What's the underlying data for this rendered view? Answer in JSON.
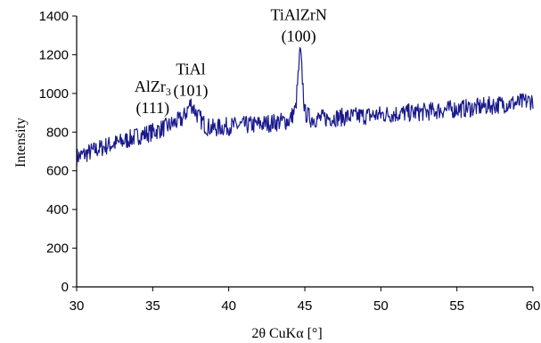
{
  "chart_data": {
    "type": "line",
    "xlabel": "2θ CuKα [°]",
    "ylabel": "Intensity",
    "xlim": [
      30,
      60
    ],
    "ylim": [
      0,
      1400
    ],
    "x_ticks": [
      "30",
      "35",
      "40",
      "45",
      "50",
      "55",
      "60"
    ],
    "y_ticks": [
      "0",
      "200",
      "400",
      "600",
      "800",
      "1000",
      "1200",
      "1400"
    ],
    "grid": false,
    "line_color": "#1a1a8c",
    "series": [
      {
        "x": [
          30,
          31,
          32,
          33,
          34,
          35,
          36,
          37,
          37.5,
          38,
          38.5,
          39,
          40,
          41,
          42,
          43,
          44,
          44.4,
          44.7,
          45,
          45.4,
          46,
          47,
          48,
          49,
          50,
          51,
          52,
          53,
          54,
          55,
          56,
          57,
          58,
          59,
          60
        ],
        "y": [
          670,
          700,
          730,
          750,
          780,
          800,
          830,
          870,
          950,
          880,
          830,
          820,
          830,
          835,
          840,
          850,
          860,
          920,
          1230,
          900,
          870,
          870,
          875,
          880,
          885,
          890,
          895,
          900,
          905,
          915,
          920,
          925,
          935,
          945,
          950,
          965
        ]
      }
    ],
    "annotations": [
      {
        "line1": "AlZr",
        "sub": "3",
        "line2": "(111)",
        "x": 35.0,
        "y": 870
      },
      {
        "line1": "TiAl",
        "sub": "",
        "line2": "(101)",
        "x": 37.5,
        "y": 960
      },
      {
        "line1": "TiAlZrN",
        "sub": "",
        "line2": "(100)",
        "x": 44.6,
        "y": 1240
      }
    ]
  }
}
